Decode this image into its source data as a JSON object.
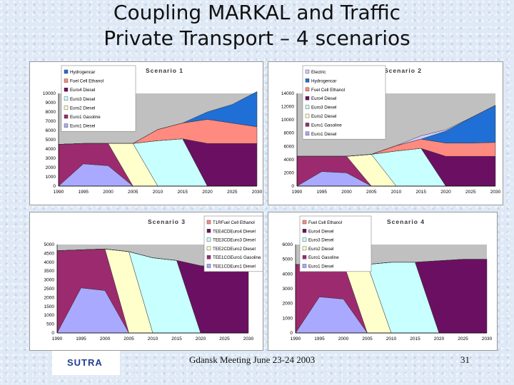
{
  "slide": {
    "title_line1": "Coupling MARKAL and Traffic",
    "title_line2": "Private Transport – 4 scenarios",
    "footer": "Gdansk Meeting June 23-24 2003",
    "page_number": "31",
    "logo_text": "SUTRA"
  },
  "colors": {
    "Hydrogencar": "#1f6fd6",
    "Hydrogencar2": "#1560c4",
    "Fuel Cell Ethanol": "#ff8a80",
    "Euro4 Diesel": "#6b0f63",
    "Euro3 Diesel": "#c8ffff",
    "Euro2 Diesel": "#ffffcc",
    "Euro1 Gasoline": "#9c2a6e",
    "Euro1 Diesel": "#a9aaff",
    "Electric": "#ccccff"
  },
  "chart_data": [
    {
      "type": "area",
      "title": "Scenario 1",
      "categories": [
        "1990",
        "1995",
        "2000",
        "2005",
        "2010",
        "2015",
        "2020",
        "2025",
        "2030"
      ],
      "yticks": [
        0,
        1000,
        2000,
        3000,
        4000,
        5000,
        6000,
        7000,
        8000,
        9000,
        10000
      ],
      "ylim": [
        0,
        10000
      ],
      "legend": [
        "Hydrogencar",
        "Fuel Cell Ethanol",
        "Euro4 Diesel",
        "Euro3 Diesel",
        "Euro2 Diesel",
        "Euro1 Gasoline",
        "Euro1 Diesel"
      ],
      "series": [
        {
          "name": "Euro1 Diesel",
          "values": [
            0,
            2400,
            2200,
            0,
            0,
            0,
            0,
            0,
            0
          ]
        },
        {
          "name": "Euro1 Gasoline",
          "values": [
            4500,
            2200,
            2400,
            0,
            0,
            0,
            0,
            0,
            0
          ]
        },
        {
          "name": "Euro2 Diesel",
          "values": [
            0,
            0,
            0,
            4600,
            0,
            0,
            0,
            0,
            0
          ]
        },
        {
          "name": "Euro3 Diesel",
          "values": [
            0,
            0,
            0,
            0,
            4900,
            5100,
            0,
            0,
            0
          ]
        },
        {
          "name": "Euro4 Diesel",
          "values": [
            0,
            0,
            0,
            0,
            0,
            0,
            4600,
            4600,
            4600
          ]
        },
        {
          "name": "Fuel Cell Ethanol",
          "values": [
            0,
            0,
            0,
            0,
            1200,
            1700,
            2600,
            2200,
            1800
          ]
        },
        {
          "name": "Hydrogencar",
          "values": [
            0,
            0,
            0,
            0,
            0,
            0,
            800,
            2000,
            3800
          ]
        }
      ]
    },
    {
      "type": "area",
      "title": "Scenario 2",
      "categories": [
        "1990",
        "1995",
        "2000",
        "2005",
        "2010",
        "2015",
        "2020",
        "2025",
        "2030"
      ],
      "yticks": [
        0,
        2000,
        4000,
        6000,
        8000,
        10000,
        12000,
        14000
      ],
      "ylim": [
        0,
        14000
      ],
      "legend": [
        "Electric",
        "Hydrogencar",
        "Fuel Cell Ethanol",
        "Euro4 Diesel",
        "Euro3 Diesel",
        "Euro2 Diesel",
        "Euro1 Gasoline",
        "Euro1 Diesel"
      ],
      "series": [
        {
          "name": "Euro1 Diesel",
          "values": [
            0,
            2200,
            2000,
            0,
            0,
            0,
            0,
            0,
            0
          ]
        },
        {
          "name": "Euro1 Gasoline",
          "values": [
            4500,
            2300,
            2500,
            0,
            0,
            0,
            0,
            0,
            0
          ]
        },
        {
          "name": "Euro2 Diesel",
          "values": [
            0,
            0,
            0,
            4800,
            0,
            0,
            0,
            0,
            0
          ]
        },
        {
          "name": "Euro3 Diesel",
          "values": [
            0,
            0,
            0,
            0,
            5300,
            5700,
            0,
            0,
            0
          ]
        },
        {
          "name": "Euro4 Diesel",
          "values": [
            0,
            0,
            0,
            0,
            0,
            0,
            4500,
            4500,
            4500
          ]
        },
        {
          "name": "Fuel Cell Ethanol",
          "values": [
            0,
            0,
            0,
            0,
            800,
            1400,
            2000,
            2000,
            2100
          ]
        },
        {
          "name": "Hydrogencar",
          "values": [
            0,
            0,
            0,
            0,
            0,
            0,
            1800,
            3800,
            5600
          ]
        },
        {
          "name": "Electric",
          "values": [
            0,
            0,
            0,
            0,
            0,
            500,
            200,
            0,
            0
          ]
        }
      ]
    },
    {
      "type": "area",
      "title": "Scenario 3",
      "categories": [
        "1990",
        "1995",
        "2000",
        "2005",
        "2010",
        "2015",
        "2020",
        "2025",
        "2030"
      ],
      "yticks": [
        0,
        500,
        1000,
        1500,
        2000,
        2500,
        3000,
        3500,
        4000,
        4500,
        5000
      ],
      "ylim": [
        0,
        5000
      ],
      "legend": [
        "T1RFuel Cell Ethanol",
        "TEE4CDEuro4 Diesel",
        "TEE3CDEuro3 Diesel",
        "TEE2CDEuro2 Diesel",
        "TEE1CGEuro1 Gasoline",
        "TEE1CDEuro1 Diesel"
      ],
      "series": [
        {
          "name": "TEE1CDEuro1 Diesel",
          "values": [
            0,
            2550,
            2400,
            0,
            0,
            0,
            0,
            0,
            0
          ]
        },
        {
          "name": "TEE1CGEuro1 Gasoline",
          "values": [
            4650,
            2150,
            2350,
            0,
            0,
            0,
            0,
            0,
            0
          ]
        },
        {
          "name": "TEE2CDEuro2 Diesel",
          "values": [
            0,
            0,
            0,
            4600,
            0,
            0,
            0,
            0,
            0
          ]
        },
        {
          "name": "TEE3CDEuro3 Diesel",
          "values": [
            0,
            0,
            0,
            0,
            4250,
            4100,
            0,
            0,
            0
          ]
        },
        {
          "name": "TEE4CDEuro4 Diesel",
          "values": [
            0,
            0,
            0,
            0,
            0,
            0,
            3800,
            3750,
            3700
          ]
        },
        {
          "name": "T1RFuel Cell Ethanol",
          "values": [
            0,
            0,
            0,
            0,
            0,
            0,
            0,
            0,
            0
          ]
        }
      ]
    },
    {
      "type": "area",
      "title": "Scenario 4",
      "categories": [
        "1990",
        "1995",
        "2000",
        "2005",
        "2010",
        "2015",
        "2020",
        "2025",
        "2030"
      ],
      "yticks": [
        0,
        1000,
        2000,
        3000,
        4000,
        5000,
        6000
      ],
      "ylim": [
        0,
        6000
      ],
      "legend": [
        "Fuel Cell Ethanol",
        "Euro4 Diesel",
        "Euro3 Diesel",
        "Euro2 Diesel",
        "Euro1 Gasoline",
        "Euro1 Diesel"
      ],
      "series": [
        {
          "name": "Euro1 Diesel",
          "values": [
            0,
            2450,
            2300,
            0,
            0,
            0,
            0,
            0,
            0
          ]
        },
        {
          "name": "Euro1 Gasoline",
          "values": [
            4650,
            2250,
            2450,
            0,
            0,
            0,
            0,
            0,
            0
          ]
        },
        {
          "name": "Euro2 Diesel",
          "values": [
            0,
            0,
            0,
            4650,
            0,
            0,
            0,
            0,
            0
          ]
        },
        {
          "name": "Euro3 Diesel",
          "values": [
            0,
            0,
            0,
            0,
            4800,
            4800,
            0,
            0,
            0
          ]
        },
        {
          "name": "Euro4 Diesel",
          "values": [
            0,
            0,
            0,
            0,
            0,
            0,
            4900,
            5000,
            5000
          ]
        },
        {
          "name": "Fuel Cell Ethanol",
          "values": [
            0,
            0,
            0,
            0,
            0,
            0,
            0,
            0,
            0
          ]
        }
      ]
    }
  ]
}
